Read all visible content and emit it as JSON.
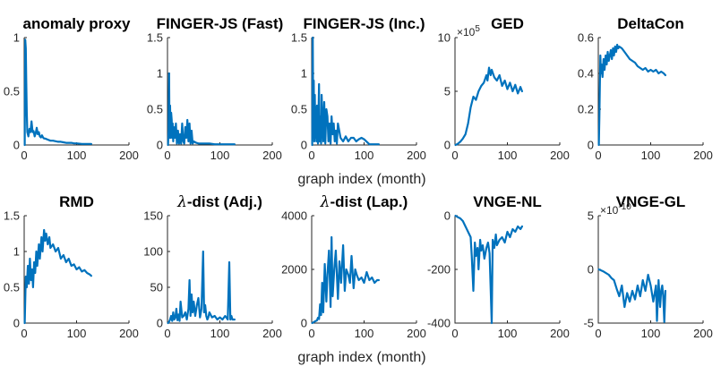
{
  "figure": {
    "xlabels": [
      "graph index (month)",
      "graph index (month)"
    ],
    "line_color": "#0072BD"
  },
  "chart_data": [
    {
      "type": "line",
      "title": "anomaly proxy",
      "xlabel": "",
      "ylabel": "",
      "xlim": [
        0,
        200
      ],
      "ylim": [
        0,
        1
      ],
      "xticks": [
        0,
        100,
        200
      ],
      "yticks": [
        0,
        0.5,
        1
      ],
      "xtick_labels": [
        "0",
        "100",
        "200"
      ],
      "ytick_labels": [
        "0",
        "0.5",
        "1"
      ],
      "exponent": "",
      "series": [
        {
          "x": [
            1,
            2,
            3,
            4,
            5,
            6,
            7,
            8,
            10,
            12,
            14,
            16,
            18,
            20,
            22,
            24,
            26,
            28,
            30,
            32,
            34,
            36,
            38,
            40,
            45,
            50,
            55,
            60,
            65,
            70,
            75,
            80,
            85,
            90,
            95,
            100,
            110,
            120,
            128
          ],
          "y": [
            0,
            0.98,
            0.9,
            0.6,
            0.3,
            0.12,
            0.1,
            0.08,
            0.15,
            0.12,
            0.22,
            0.12,
            0.13,
            0.08,
            0.11,
            0.16,
            0.1,
            0.12,
            0.08,
            0.07,
            0.09,
            0.07,
            0.06,
            0.06,
            0.05,
            0.04,
            0.04,
            0.035,
            0.03,
            0.03,
            0.025,
            0.02,
            0.02,
            0.02,
            0.015,
            0.015,
            0.01,
            0.01,
            0.01
          ]
        }
      ]
    },
    {
      "type": "line",
      "title": "FINGER-JS (Fast)",
      "xlabel": "",
      "ylabel": "",
      "xlim": [
        0,
        200
      ],
      "ylim": [
        0,
        1.5
      ],
      "xticks": [
        0,
        100,
        200
      ],
      "yticks": [
        0,
        0.5,
        1,
        1.5
      ],
      "xtick_labels": [
        "0",
        "100",
        "200"
      ],
      "ytick_labels": [
        "0",
        "0.5",
        "1",
        "1.5"
      ],
      "exponent": "",
      "series": [
        {
          "x": [
            1,
            2,
            3,
            4,
            5,
            6,
            7,
            8,
            9,
            10,
            11,
            12,
            14,
            16,
            18,
            20,
            22,
            24,
            26,
            28,
            30,
            32,
            34,
            36,
            38,
            40,
            42,
            44,
            46,
            48,
            50,
            55,
            60,
            70,
            80,
            90,
            100,
            110,
            120,
            128
          ],
          "y": [
            0,
            0.2,
            1.0,
            0.1,
            0.55,
            0.1,
            0.45,
            0.35,
            0.1,
            0.3,
            0.05,
            0.25,
            0.1,
            0.3,
            0.02,
            0.2,
            0.02,
            0.15,
            0.02,
            0.3,
            0.05,
            0.02,
            0.25,
            0.1,
            0.35,
            0.05,
            0.3,
            0.02,
            0.2,
            0.02,
            0.05,
            0.03,
            0.02,
            0.02,
            0.02,
            0.01,
            0.01,
            0.01,
            0.01,
            0.01
          ]
        }
      ]
    },
    {
      "type": "line",
      "title": "FINGER-JS (Inc.)",
      "xlabel": "",
      "ylabel": "",
      "xlim": [
        0,
        200
      ],
      "ylim": [
        0,
        1.5
      ],
      "xticks": [
        0,
        100,
        200
      ],
      "yticks": [
        0,
        0.5,
        1,
        1.5
      ],
      "xtick_labels": [
        "0",
        "100",
        "200"
      ],
      "ytick_labels": [
        "0",
        "0.5",
        "1",
        "1.5"
      ],
      "exponent": "",
      "series": [
        {
          "x": [
            1,
            2,
            3,
            4,
            5,
            6,
            7,
            8,
            9,
            10,
            12,
            14,
            15,
            16,
            18,
            19,
            20,
            22,
            24,
            26,
            28,
            30,
            32,
            34,
            36,
            38,
            40,
            42,
            44,
            46,
            48,
            50,
            55,
            60,
            65,
            70,
            75,
            80,
            85,
            90,
            95,
            100,
            110,
            120,
            128
          ],
          "y": [
            0,
            1.5,
            0.1,
            0.9,
            0.05,
            0.7,
            0.1,
            0.5,
            0.05,
            0.55,
            0.02,
            0.85,
            0.05,
            0.4,
            0.02,
            0.7,
            0.5,
            0.05,
            0.6,
            0.02,
            0.5,
            0.4,
            0.05,
            0.3,
            0.02,
            0.4,
            0.15,
            0.3,
            0.05,
            0.2,
            0.02,
            0.3,
            0.1,
            0.05,
            0.12,
            0.05,
            0.1,
            0.1,
            0.05,
            0.08,
            0.1,
            0.08,
            0.01,
            0.01,
            0.01
          ]
        }
      ]
    },
    {
      "type": "line",
      "title": "GED",
      "xlabel": "",
      "ylabel": "",
      "xlim": [
        0,
        200
      ],
      "ylim": [
        0,
        10
      ],
      "xticks": [
        0,
        100,
        200
      ],
      "yticks": [
        0,
        5,
        10
      ],
      "xtick_labels": [
        "0",
        "100",
        "200"
      ],
      "ytick_labels": [
        "0",
        "5",
        "10"
      ],
      "exponent": "×10^5",
      "series": [
        {
          "x": [
            1,
            5,
            10,
            15,
            20,
            25,
            30,
            35,
            40,
            45,
            50,
            55,
            60,
            62,
            65,
            68,
            70,
            75,
            80,
            85,
            90,
            95,
            100,
            105,
            110,
            115,
            120,
            125,
            128
          ],
          "y": [
            0,
            0.1,
            0.3,
            0.6,
            1.0,
            2.0,
            3.5,
            4.5,
            4.2,
            5.0,
            5.5,
            5.8,
            6.5,
            6.0,
            7.2,
            6.5,
            7.0,
            6.3,
            6.0,
            6.5,
            5.5,
            6.0,
            5.2,
            5.8,
            5.0,
            5.6,
            4.8,
            5.4,
            5.0
          ]
        }
      ]
    },
    {
      "type": "line",
      "title": "DeltaCon",
      "xlabel": "",
      "ylabel": "",
      "xlim": [
        0,
        200
      ],
      "ylim": [
        0,
        0.6
      ],
      "xticks": [
        0,
        100,
        200
      ],
      "yticks": [
        0,
        0.2,
        0.4,
        0.6
      ],
      "xtick_labels": [
        "0",
        "100",
        "200"
      ],
      "ytick_labels": [
        "0",
        "0.2",
        "0.4",
        "0.6"
      ],
      "exponent": "",
      "series": [
        {
          "x": [
            1,
            2,
            3,
            4,
            5,
            6,
            8,
            10,
            12,
            14,
            16,
            18,
            20,
            22,
            24,
            26,
            28,
            30,
            32,
            34,
            36,
            38,
            40,
            45,
            50,
            55,
            60,
            65,
            70,
            75,
            80,
            85,
            90,
            95,
            100,
            105,
            110,
            115,
            120,
            125,
            128
          ],
          "y": [
            0,
            0.15,
            0.35,
            0.5,
            0.4,
            0.45,
            0.38,
            0.48,
            0.42,
            0.5,
            0.45,
            0.52,
            0.47,
            0.5,
            0.53,
            0.48,
            0.54,
            0.5,
            0.55,
            0.52,
            0.56,
            0.54,
            0.55,
            0.54,
            0.52,
            0.5,
            0.48,
            0.47,
            0.46,
            0.44,
            0.43,
            0.42,
            0.43,
            0.41,
            0.42,
            0.41,
            0.42,
            0.4,
            0.41,
            0.4,
            0.39
          ]
        }
      ]
    },
    {
      "type": "line",
      "title": "RMD",
      "xlabel": "",
      "ylabel": "",
      "xlim": [
        0,
        200
      ],
      "ylim": [
        0,
        1.5
      ],
      "xticks": [
        0,
        100,
        200
      ],
      "yticks": [
        0,
        0.5,
        1,
        1.5
      ],
      "xtick_labels": [
        "0",
        "100",
        "200"
      ],
      "ytick_labels": [
        "0",
        "0.5",
        "1",
        "1.5"
      ],
      "exponent": "",
      "series": [
        {
          "x": [
            1,
            3,
            5,
            7,
            9,
            11,
            13,
            15,
            17,
            19,
            21,
            23,
            25,
            28,
            30,
            33,
            35,
            38,
            40,
            42,
            45,
            48,
            50,
            55,
            60,
            65,
            70,
            75,
            80,
            85,
            90,
            95,
            100,
            105,
            110,
            115,
            120,
            125,
            128
          ],
          "y": [
            0,
            0.65,
            0.5,
            0.8,
            0.55,
            0.9,
            0.6,
            0.75,
            0.5,
            0.85,
            0.7,
            1.0,
            0.8,
            1.1,
            0.9,
            1.2,
            1.0,
            1.3,
            1.15,
            1.25,
            1.1,
            1.2,
            1.05,
            1.1,
            1.0,
            1.05,
            0.9,
            0.95,
            0.85,
            0.9,
            0.8,
            0.82,
            0.75,
            0.78,
            0.72,
            0.74,
            0.7,
            0.68,
            0.66
          ]
        }
      ]
    },
    {
      "type": "line",
      "title": "λ-dist (Adj.)",
      "xlabel": "",
      "ylabel": "",
      "xlim": [
        0,
        200
      ],
      "ylim": [
        0,
        150
      ],
      "xticks": [
        0,
        100,
        200
      ],
      "yticks": [
        0,
        50,
        100,
        150
      ],
      "xtick_labels": [
        "0",
        "100",
        "200"
      ],
      "ytick_labels": [
        "0",
        "50",
        "100",
        "150"
      ],
      "exponent": "",
      "series": [
        {
          "x": [
            1,
            3,
            5,
            7,
            9,
            11,
            13,
            15,
            17,
            19,
            21,
            23,
            25,
            28,
            31,
            34,
            37,
            40,
            42,
            44,
            46,
            48,
            50,
            53,
            56,
            59,
            62,
            65,
            68,
            70,
            72,
            74,
            76,
            78,
            80,
            85,
            90,
            95,
            100,
            105,
            110,
            115,
            118,
            120,
            122,
            124,
            126,
            128
          ],
          "y": [
            0,
            2,
            5,
            10,
            3,
            15,
            5,
            8,
            20,
            4,
            12,
            3,
            30,
            8,
            10,
            15,
            5,
            20,
            60,
            10,
            40,
            15,
            30,
            10,
            25,
            35,
            8,
            20,
            100,
            15,
            25,
            10,
            5,
            8,
            15,
            8,
            10,
            5,
            8,
            5,
            10,
            5,
            85,
            5,
            10,
            5,
            5,
            5
          ]
        }
      ]
    },
    {
      "type": "line",
      "title": "λ-dist (Lap.)",
      "xlabel": "",
      "ylabel": "",
      "xlim": [
        0,
        200
      ],
      "ylim": [
        0,
        4000
      ],
      "xticks": [
        0,
        100,
        200
      ],
      "yticks": [
        0,
        2000,
        4000
      ],
      "xtick_labels": [
        "0",
        "100",
        "200"
      ],
      "ytick_labels": [
        "0",
        "2000",
        "4000"
      ],
      "exponent": "",
      "series": [
        {
          "x": [
            1,
            5,
            10,
            12,
            14,
            16,
            18,
            20,
            22,
            25,
            28,
            30,
            33,
            36,
            38,
            40,
            43,
            46,
            50,
            53,
            56,
            60,
            63,
            66,
            70,
            73,
            76,
            80,
            83,
            86,
            90,
            95,
            100,
            105,
            110,
            115,
            120,
            125,
            128
          ],
          "y": [
            0,
            50,
            100,
            200,
            150,
            700,
            300,
            1500,
            400,
            2200,
            800,
            1800,
            2700,
            600,
            3200,
            1000,
            2000,
            2700,
            900,
            2300,
            1500,
            2900,
            1200,
            2000,
            1800,
            1500,
            2500,
            1300,
            2000,
            1800,
            1600,
            1700,
            1500,
            1900,
            1600,
            1700,
            1500,
            1600,
            1600
          ]
        }
      ]
    },
    {
      "type": "line",
      "title": "VNGE-NL",
      "xlabel": "",
      "ylabel": "",
      "xlim": [
        0,
        200
      ],
      "ylim": [
        -400,
        0
      ],
      "xticks": [
        0,
        100,
        200
      ],
      "yticks": [
        -400,
        -200,
        0
      ],
      "xtick_labels": [
        "0",
        "100",
        "200"
      ],
      "ytick_labels": [
        "-400",
        "-200",
        "0"
      ],
      "exponent": "",
      "series": [
        {
          "x": [
            1,
            5,
            10,
            15,
            20,
            25,
            30,
            32,
            35,
            38,
            40,
            43,
            45,
            48,
            50,
            53,
            56,
            60,
            63,
            66,
            70,
            72,
            75,
            78,
            80,
            85,
            90,
            95,
            100,
            105,
            110,
            115,
            120,
            125,
            128
          ],
          "y": [
            0,
            -5,
            -10,
            -20,
            -40,
            -60,
            -80,
            -150,
            -280,
            -100,
            -150,
            -120,
            -200,
            -90,
            -130,
            -110,
            -160,
            -120,
            -100,
            -140,
            -400,
            -90,
            -120,
            -70,
            -110,
            -90,
            -80,
            -100,
            -60,
            -80,
            -50,
            -60,
            -40,
            -50,
            -40
          ]
        }
      ]
    },
    {
      "type": "line",
      "title": "VNGE-GL",
      "xlabel": "",
      "ylabel": "",
      "xlim": [
        0,
        200
      ],
      "ylim": [
        -5,
        5
      ],
      "xticks": [
        0,
        100,
        200
      ],
      "yticks": [
        -5,
        0,
        5
      ],
      "xtick_labels": [
        "0",
        "100",
        "200"
      ],
      "ytick_labels": [
        "-5",
        "0",
        "5"
      ],
      "exponent": "×10^-10",
      "series": [
        {
          "x": [
            1,
            10,
            20,
            25,
            30,
            35,
            40,
            45,
            50,
            55,
            60,
            65,
            70,
            75,
            80,
            85,
            90,
            95,
            100,
            105,
            110,
            112,
            115,
            118,
            120,
            122,
            124,
            126,
            128
          ],
          "y": [
            0,
            -0.2,
            -0.5,
            -0.8,
            -1.0,
            -1.8,
            -2.5,
            -1.5,
            -3.5,
            -2.2,
            -3.0,
            -2.0,
            -2.8,
            -1.5,
            -2.5,
            -1.0,
            -2.0,
            -0.5,
            -1.5,
            -3.0,
            -1.5,
            -4.8,
            -1.0,
            -3.5,
            -2.0,
            -1.5,
            -2.5,
            -4.9,
            -2.0
          ]
        }
      ]
    }
  ]
}
